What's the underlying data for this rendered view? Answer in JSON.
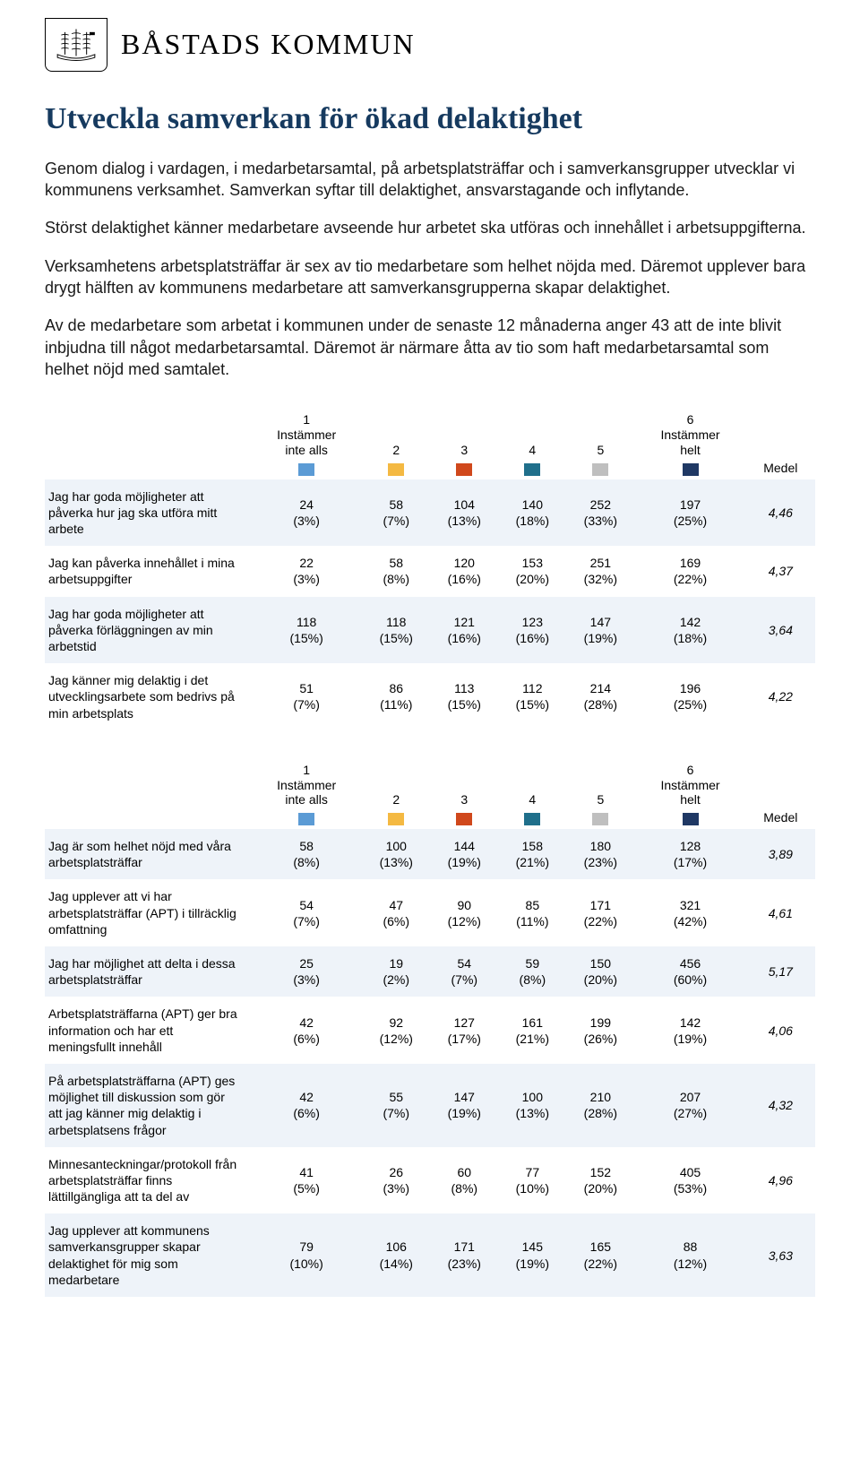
{
  "header": {
    "org_name": "BÅSTADS KOMMUN"
  },
  "title": "Utveckla samverkan för ökad delaktighet",
  "paragraphs": [
    "Genom dialog i vardagen, i medarbetarsamtal, på arbetsplatsträffar och i samverkansgrupper utvecklar vi kommunens verksamhet. Samverkan syftar till delaktighet, ansvarstagande och inflytande.",
    "Störst delaktighet känner medarbetare avseende hur arbetet ska utföras och innehållet i arbetsuppgifterna.",
    "Verksamhetens arbetsplatsträffar är sex av tio medarbetare som helhet nöjda med. Däremot upplever bara drygt hälften av kommunens medarbetare att samverkansgrupperna skapar delaktighet.",
    "Av de medarbetare som arbetat i kommunen under de senaste 12 månaderna anger 43 att de inte blivit inbjudna till något medarbetarsamtal. Däremot är närmare åtta av tio som haft medarbetarsamtal som helhet nöjd med samtalet."
  ],
  "scale": {
    "low_label": "Instämmer\ninte alls",
    "high_label": "Instämmer\nhelt",
    "mean_label": "Medel",
    "low_num": "1",
    "high_num": "6",
    "mid_nums": [
      "2",
      "3",
      "4",
      "5"
    ],
    "colors": [
      "#5b9bd5",
      "#f4b942",
      "#d0481c",
      "#1f6f8b",
      "#bfbfbf",
      "#1f3864"
    ]
  },
  "table1": {
    "rows": [
      {
        "label": "Jag har goda möjligheter att påverka hur jag ska utföra mitt arbete",
        "cells": [
          "24\n(3%)",
          "58\n(7%)",
          "104\n(13%)",
          "140\n(18%)",
          "252\n(33%)",
          "197\n(25%)"
        ],
        "mean": "4,46"
      },
      {
        "label": "Jag kan påverka innehållet i mina arbetsuppgifter",
        "cells": [
          "22\n(3%)",
          "58\n(8%)",
          "120\n(16%)",
          "153\n(20%)",
          "251\n(32%)",
          "169\n(22%)"
        ],
        "mean": "4,37"
      },
      {
        "label": "Jag har goda möjligheter att påverka förläggningen av min arbetstid",
        "cells": [
          "118\n(15%)",
          "118\n(15%)",
          "121\n(16%)",
          "123\n(16%)",
          "147\n(19%)",
          "142\n(18%)"
        ],
        "mean": "3,64"
      },
      {
        "label": "Jag känner mig delaktig i det utvecklingsarbete som bedrivs på min arbetsplats",
        "cells": [
          "51\n(7%)",
          "86\n(11%)",
          "113\n(15%)",
          "112\n(15%)",
          "214\n(28%)",
          "196\n(25%)"
        ],
        "mean": "4,22"
      }
    ]
  },
  "table2": {
    "rows": [
      {
        "label": "Jag är som helhet nöjd med våra arbetsplatsträffar",
        "cells": [
          "58\n(8%)",
          "100\n(13%)",
          "144\n(19%)",
          "158\n(21%)",
          "180\n(23%)",
          "128\n(17%)"
        ],
        "mean": "3,89"
      },
      {
        "label": "Jag upplever att vi har arbetsplatsträffar (APT) i tillräcklig omfattning",
        "cells": [
          "54\n(7%)",
          "47\n(6%)",
          "90\n(12%)",
          "85\n(11%)",
          "171\n(22%)",
          "321\n(42%)"
        ],
        "mean": "4,61"
      },
      {
        "label": "Jag har möjlighet att delta i dessa arbetsplatsträffar",
        "cells": [
          "25\n(3%)",
          "19\n(2%)",
          "54\n(7%)",
          "59\n(8%)",
          "150\n(20%)",
          "456\n(60%)"
        ],
        "mean": "5,17"
      },
      {
        "label": "Arbetsplatsträffarna (APT) ger bra information och har ett meningsfullt innehåll",
        "cells": [
          "42\n(6%)",
          "92\n(12%)",
          "127\n(17%)",
          "161\n(21%)",
          "199\n(26%)",
          "142\n(19%)"
        ],
        "mean": "4,06"
      },
      {
        "label": "På arbetsplatsträffarna (APT) ges möjlighet till diskussion som gör att jag känner mig delaktig i arbetsplatsens frågor",
        "cells": [
          "42\n(6%)",
          "55\n(7%)",
          "147\n(19%)",
          "100\n(13%)",
          "210\n(28%)",
          "207\n(27%)"
        ],
        "mean": "4,32"
      },
      {
        "label": "Minnesanteckningar/protokoll från arbetsplatsträffar finns lättillgängliga att ta del av",
        "cells": [
          "41\n(5%)",
          "26\n(3%)",
          "60\n(8%)",
          "77\n(10%)",
          "152\n(20%)",
          "405\n(53%)"
        ],
        "mean": "4,96"
      },
      {
        "label": "Jag upplever att kommunens samverkansgrupper skapar delaktighet för mig som medarbetare",
        "cells": [
          "79\n(10%)",
          "106\n(14%)",
          "171\n(23%)",
          "145\n(19%)",
          "165\n(22%)",
          "88\n(12%)"
        ],
        "mean": "3,63"
      }
    ]
  }
}
